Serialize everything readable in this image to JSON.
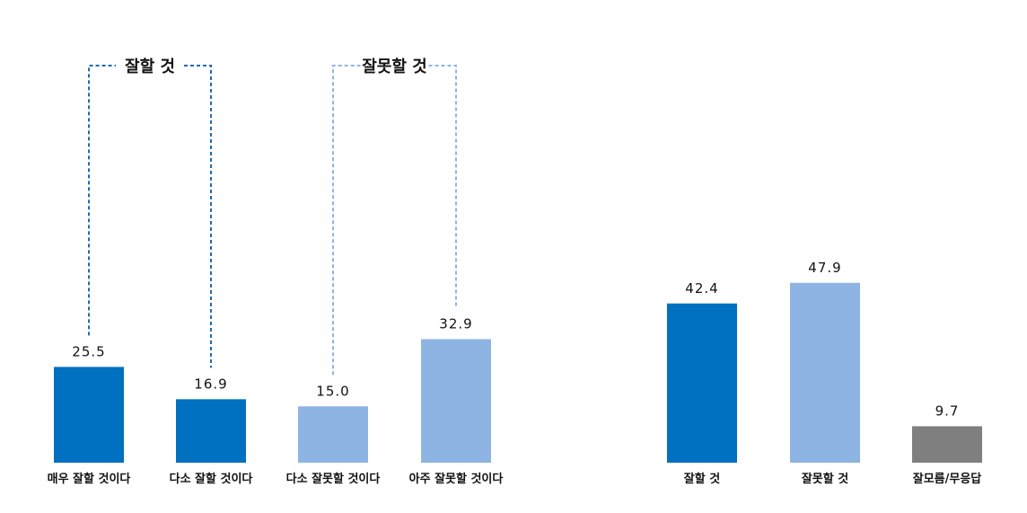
{
  "chart_data": [
    {
      "type": "bar",
      "categories": [
        "매우 잘할 것이다",
        "다소 잘할 것이다",
        "다소 잘못할 것이다",
        "아주 잘못할 것이다"
      ],
      "values": [
        25.5,
        16.9,
        15.0,
        32.9
      ],
      "value_labels": [
        "25.5",
        "16.9",
        "15.0",
        "32.9"
      ],
      "colors": [
        "#0070C0",
        "#0070C0",
        "#8EB4E3",
        "#8EB4E3"
      ],
      "groups": [
        {
          "label": "잘할 것",
          "members": [
            0,
            1
          ],
          "color": "#1F6BB5"
        },
        {
          "label": "잘못할 것",
          "members": [
            2,
            3
          ],
          "color": "#8EB4E3"
        }
      ],
      "ylim": [
        0,
        100
      ],
      "grid": false
    },
    {
      "type": "bar",
      "categories": [
        "잘할 것",
        "잘못할 것",
        "잘모름/무응답"
      ],
      "values": [
        42.4,
        47.9,
        9.7
      ],
      "value_labels": [
        "42.4",
        "47.9",
        "9.7"
      ],
      "colors": [
        "#0070C0",
        "#8EB4E3",
        "#7F7F7F"
      ],
      "ylim": [
        0,
        100
      ],
      "grid": false
    }
  ]
}
